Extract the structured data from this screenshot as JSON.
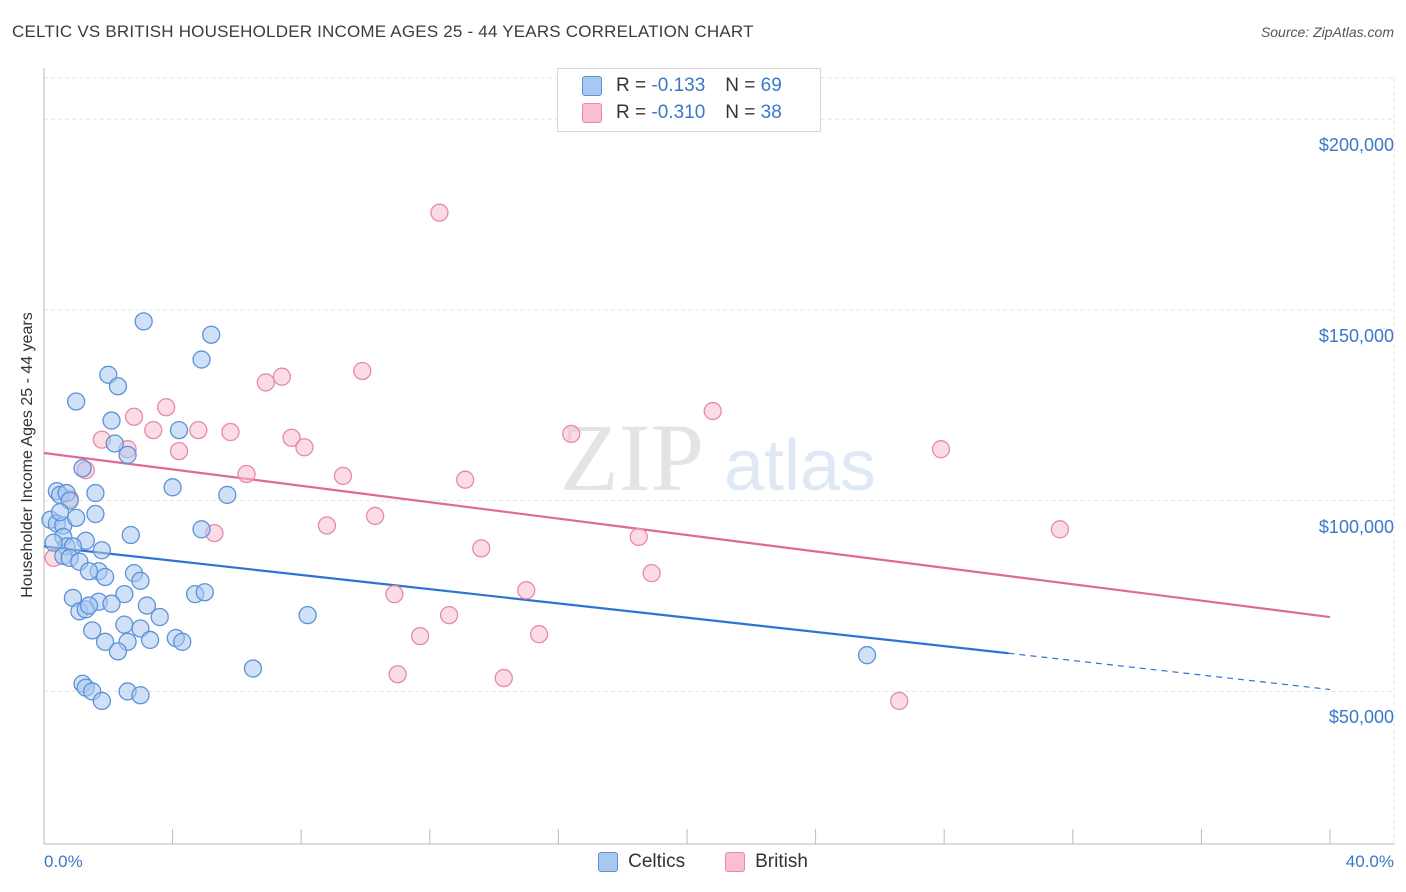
{
  "title": "CELTIC VS BRITISH HOUSEHOLDER INCOME AGES 25 - 44 YEARS CORRELATION CHART",
  "source": "Source: ZipAtlas.com",
  "watermark": {
    "zip": "ZIP",
    "atlas": "atlas"
  },
  "colors": {
    "celtics_fill": "#a9c8f0",
    "celtics_stroke": "#5b93d8",
    "celtics_line": "#2f73d0",
    "british_fill": "#f7bfd0",
    "british_stroke": "#e789a9",
    "british_line": "#e06a93",
    "tick_text": "#3a78c9"
  },
  "legend_top": {
    "rows": [
      {
        "r_label": "R =",
        "r_value": "-0.133",
        "n_label": "N =",
        "n_value": "69"
      },
      {
        "r_label": "R =",
        "r_value": "-0.310",
        "n_label": "N =",
        "n_value": "38"
      }
    ]
  },
  "legend_bottom": {
    "celtics": "Celtics",
    "british": "British"
  },
  "chart_data": {
    "type": "scatter",
    "title": "CELTIC VS BRITISH HOUSEHOLDER INCOME AGES 25 - 44 YEARS CORRELATION CHART",
    "xlabel": "",
    "ylabel": "Householder Income Ages 25 - 44 years",
    "xlim": [
      0,
      40
    ],
    "ylim": [
      10000,
      215000
    ],
    "x_tick_labels": [
      "0.0%",
      "40.0%"
    ],
    "y_ticks": [
      50000,
      100000,
      150000,
      200000
    ],
    "y_tick_labels": [
      "$50,000",
      "$100,000",
      "$150,000",
      "$200,000"
    ],
    "grid": true,
    "series": [
      {
        "name": "Celtics",
        "r": -0.133,
        "n": 69,
        "trend": {
          "x0": 0,
          "y0": 88000,
          "x1": 30,
          "y1": 60000,
          "dash_to_x": 40,
          "dash_to_y": 50500
        },
        "points": [
          [
            3.1,
            147000
          ],
          [
            5.2,
            143500
          ],
          [
            4.9,
            137000
          ],
          [
            2.0,
            133000
          ],
          [
            2.3,
            130000
          ],
          [
            1.0,
            126000
          ],
          [
            2.1,
            121000
          ],
          [
            4.2,
            118500
          ],
          [
            2.2,
            115000
          ],
          [
            2.6,
            112000
          ],
          [
            1.2,
            108500
          ],
          [
            0.4,
            102500
          ],
          [
            0.5,
            101500
          ],
          [
            0.7,
            102000
          ],
          [
            0.8,
            100000
          ],
          [
            1.6,
            102000
          ],
          [
            4.0,
            103500
          ],
          [
            5.7,
            101500
          ],
          [
            1.6,
            96500
          ],
          [
            0.2,
            95000
          ],
          [
            0.4,
            94000
          ],
          [
            0.6,
            93500
          ],
          [
            4.9,
            92500
          ],
          [
            2.7,
            91000
          ],
          [
            0.6,
            90500
          ],
          [
            0.7,
            88000
          ],
          [
            1.3,
            89500
          ],
          [
            0.9,
            88000
          ],
          [
            1.8,
            87000
          ],
          [
            0.6,
            85500
          ],
          [
            0.8,
            85000
          ],
          [
            1.1,
            84000
          ],
          [
            1.7,
            81500
          ],
          [
            2.8,
            81000
          ],
          [
            1.9,
            80000
          ],
          [
            3.0,
            79000
          ],
          [
            2.5,
            75500
          ],
          [
            4.7,
            75500
          ],
          [
            5.0,
            76000
          ],
          [
            1.7,
            73500
          ],
          [
            0.9,
            74500
          ],
          [
            2.1,
            73000
          ],
          [
            3.2,
            72500
          ],
          [
            1.1,
            71000
          ],
          [
            1.3,
            71500
          ],
          [
            1.4,
            72500
          ],
          [
            3.6,
            69500
          ],
          [
            8.2,
            70000
          ],
          [
            2.5,
            67500
          ],
          [
            3.0,
            66500
          ],
          [
            1.5,
            66000
          ],
          [
            1.9,
            63000
          ],
          [
            2.6,
            63000
          ],
          [
            3.3,
            63500
          ],
          [
            4.1,
            64000
          ],
          [
            4.3,
            63000
          ],
          [
            2.3,
            60500
          ],
          [
            6.5,
            56000
          ],
          [
            1.2,
            52000
          ],
          [
            1.3,
            51000
          ],
          [
            1.5,
            50000
          ],
          [
            2.6,
            50000
          ],
          [
            3.0,
            49000
          ],
          [
            1.8,
            47500
          ],
          [
            25.6,
            59500
          ],
          [
            0.3,
            89000
          ],
          [
            0.5,
            97000
          ],
          [
            1.0,
            95500
          ],
          [
            1.4,
            81500
          ]
        ]
      },
      {
        "name": "British",
        "r": -0.31,
        "n": 38,
        "trend": {
          "x0": 0,
          "y0": 112500,
          "x1": 40,
          "y1": 69500
        },
        "points": [
          [
            12.3,
            175500
          ],
          [
            9.9,
            134000
          ],
          [
            7.4,
            132500
          ],
          [
            6.9,
            131000
          ],
          [
            3.8,
            124500
          ],
          [
            20.8,
            123500
          ],
          [
            2.8,
            122000
          ],
          [
            3.4,
            118500
          ],
          [
            4.8,
            118500
          ],
          [
            5.8,
            118000
          ],
          [
            16.4,
            117500
          ],
          [
            7.7,
            116500
          ],
          [
            8.1,
            114000
          ],
          [
            2.6,
            113500
          ],
          [
            1.8,
            116000
          ],
          [
            4.2,
            113000
          ],
          [
            27.9,
            113500
          ],
          [
            1.3,
            108000
          ],
          [
            6.3,
            107000
          ],
          [
            9.3,
            106500
          ],
          [
            13.1,
            105500
          ],
          [
            0.8,
            100500
          ],
          [
            10.3,
            96000
          ],
          [
            8.8,
            93500
          ],
          [
            5.3,
            91500
          ],
          [
            18.5,
            90500
          ],
          [
            31.6,
            92500
          ],
          [
            13.6,
            87500
          ],
          [
            18.9,
            81000
          ],
          [
            15.0,
            76500
          ],
          [
            10.9,
            75500
          ],
          [
            12.6,
            70000
          ],
          [
            11.7,
            64500
          ],
          [
            15.4,
            65000
          ],
          [
            11.0,
            54500
          ],
          [
            14.3,
            53500
          ],
          [
            26.6,
            47500
          ],
          [
            0.3,
            85000
          ]
        ]
      }
    ]
  }
}
